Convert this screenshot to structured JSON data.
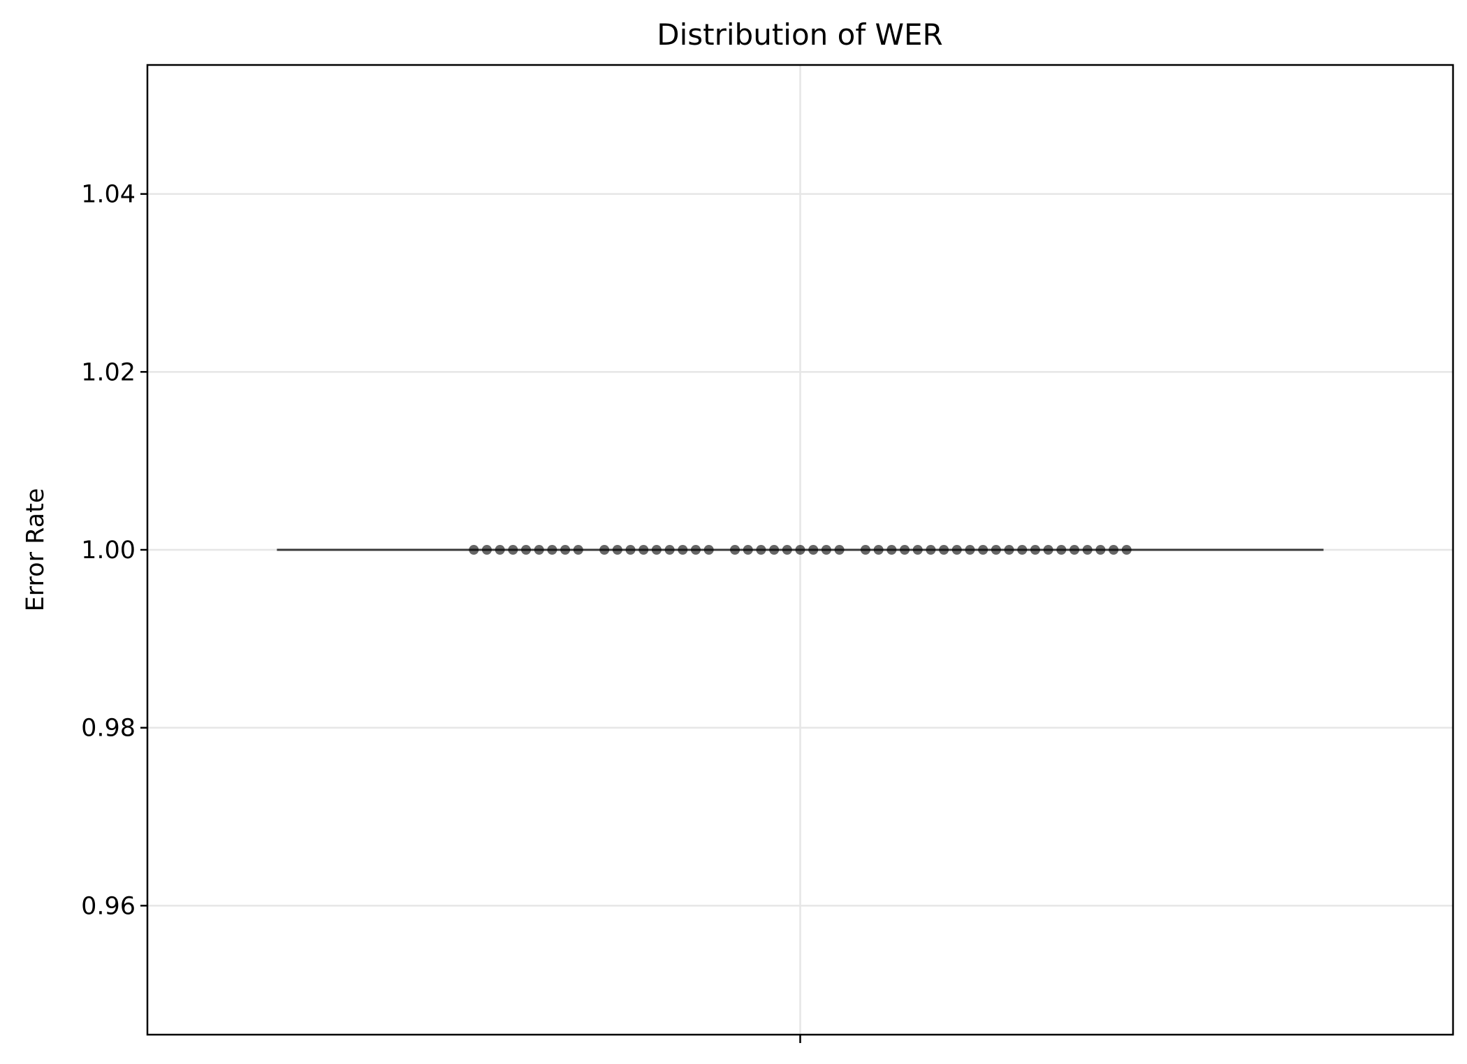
{
  "chart_data": {
    "type": "box",
    "title": "Distribution of WER",
    "xlabel": "",
    "ylabel": "Error Rate",
    "ylim": [
      0.9455,
      1.0545
    ],
    "yticks": [
      0.96,
      0.98,
      1.0,
      1.02,
      1.04
    ],
    "ytick_labels": [
      "0.96",
      "0.98",
      "1.00",
      "1.02",
      "1.04"
    ],
    "xticks": [
      ""
    ],
    "grid": true,
    "box": {
      "min": 1.0,
      "q1": 1.0,
      "median": 1.0,
      "q3": 1.0,
      "max": 1.0
    },
    "points": [
      {
        "x": -0.25,
        "y": 1.0
      },
      {
        "x": -0.24,
        "y": 1.0
      },
      {
        "x": -0.23,
        "y": 1.0
      },
      {
        "x": -0.22,
        "y": 1.0
      },
      {
        "x": -0.21,
        "y": 1.0
      },
      {
        "x": -0.2,
        "y": 1.0
      },
      {
        "x": -0.19,
        "y": 1.0
      },
      {
        "x": -0.18,
        "y": 1.0
      },
      {
        "x": -0.17,
        "y": 1.0
      },
      {
        "x": -0.15,
        "y": 1.0
      },
      {
        "x": -0.14,
        "y": 1.0
      },
      {
        "x": -0.13,
        "y": 1.0
      },
      {
        "x": -0.12,
        "y": 1.0
      },
      {
        "x": -0.11,
        "y": 1.0
      },
      {
        "x": -0.1,
        "y": 1.0
      },
      {
        "x": -0.09,
        "y": 1.0
      },
      {
        "x": -0.08,
        "y": 1.0
      },
      {
        "x": -0.07,
        "y": 1.0
      },
      {
        "x": -0.05,
        "y": 1.0
      },
      {
        "x": -0.04,
        "y": 1.0
      },
      {
        "x": -0.03,
        "y": 1.0
      },
      {
        "x": -0.02,
        "y": 1.0
      },
      {
        "x": -0.01,
        "y": 1.0
      },
      {
        "x": 0.0,
        "y": 1.0
      },
      {
        "x": 0.01,
        "y": 1.0
      },
      {
        "x": 0.02,
        "y": 1.0
      },
      {
        "x": 0.03,
        "y": 1.0
      },
      {
        "x": 0.05,
        "y": 1.0
      },
      {
        "x": 0.06,
        "y": 1.0
      },
      {
        "x": 0.07,
        "y": 1.0
      },
      {
        "x": 0.08,
        "y": 1.0
      },
      {
        "x": 0.09,
        "y": 1.0
      },
      {
        "x": 0.1,
        "y": 1.0
      },
      {
        "x": 0.11,
        "y": 1.0
      },
      {
        "x": 0.12,
        "y": 1.0
      },
      {
        "x": 0.13,
        "y": 1.0
      },
      {
        "x": 0.14,
        "y": 1.0
      },
      {
        "x": 0.15,
        "y": 1.0
      },
      {
        "x": 0.16,
        "y": 1.0
      },
      {
        "x": 0.17,
        "y": 1.0
      },
      {
        "x": 0.18,
        "y": 1.0
      },
      {
        "x": 0.19,
        "y": 1.0
      },
      {
        "x": 0.2,
        "y": 1.0
      },
      {
        "x": 0.21,
        "y": 1.0
      },
      {
        "x": 0.22,
        "y": 1.0
      },
      {
        "x": 0.23,
        "y": 1.0
      },
      {
        "x": 0.24,
        "y": 1.0
      },
      {
        "x": 0.25,
        "y": 1.0
      }
    ],
    "colors": {
      "box_line": "#3b3b3b",
      "points": "#000000",
      "grid": "#e6e6e6",
      "axes": "#000000"
    }
  }
}
